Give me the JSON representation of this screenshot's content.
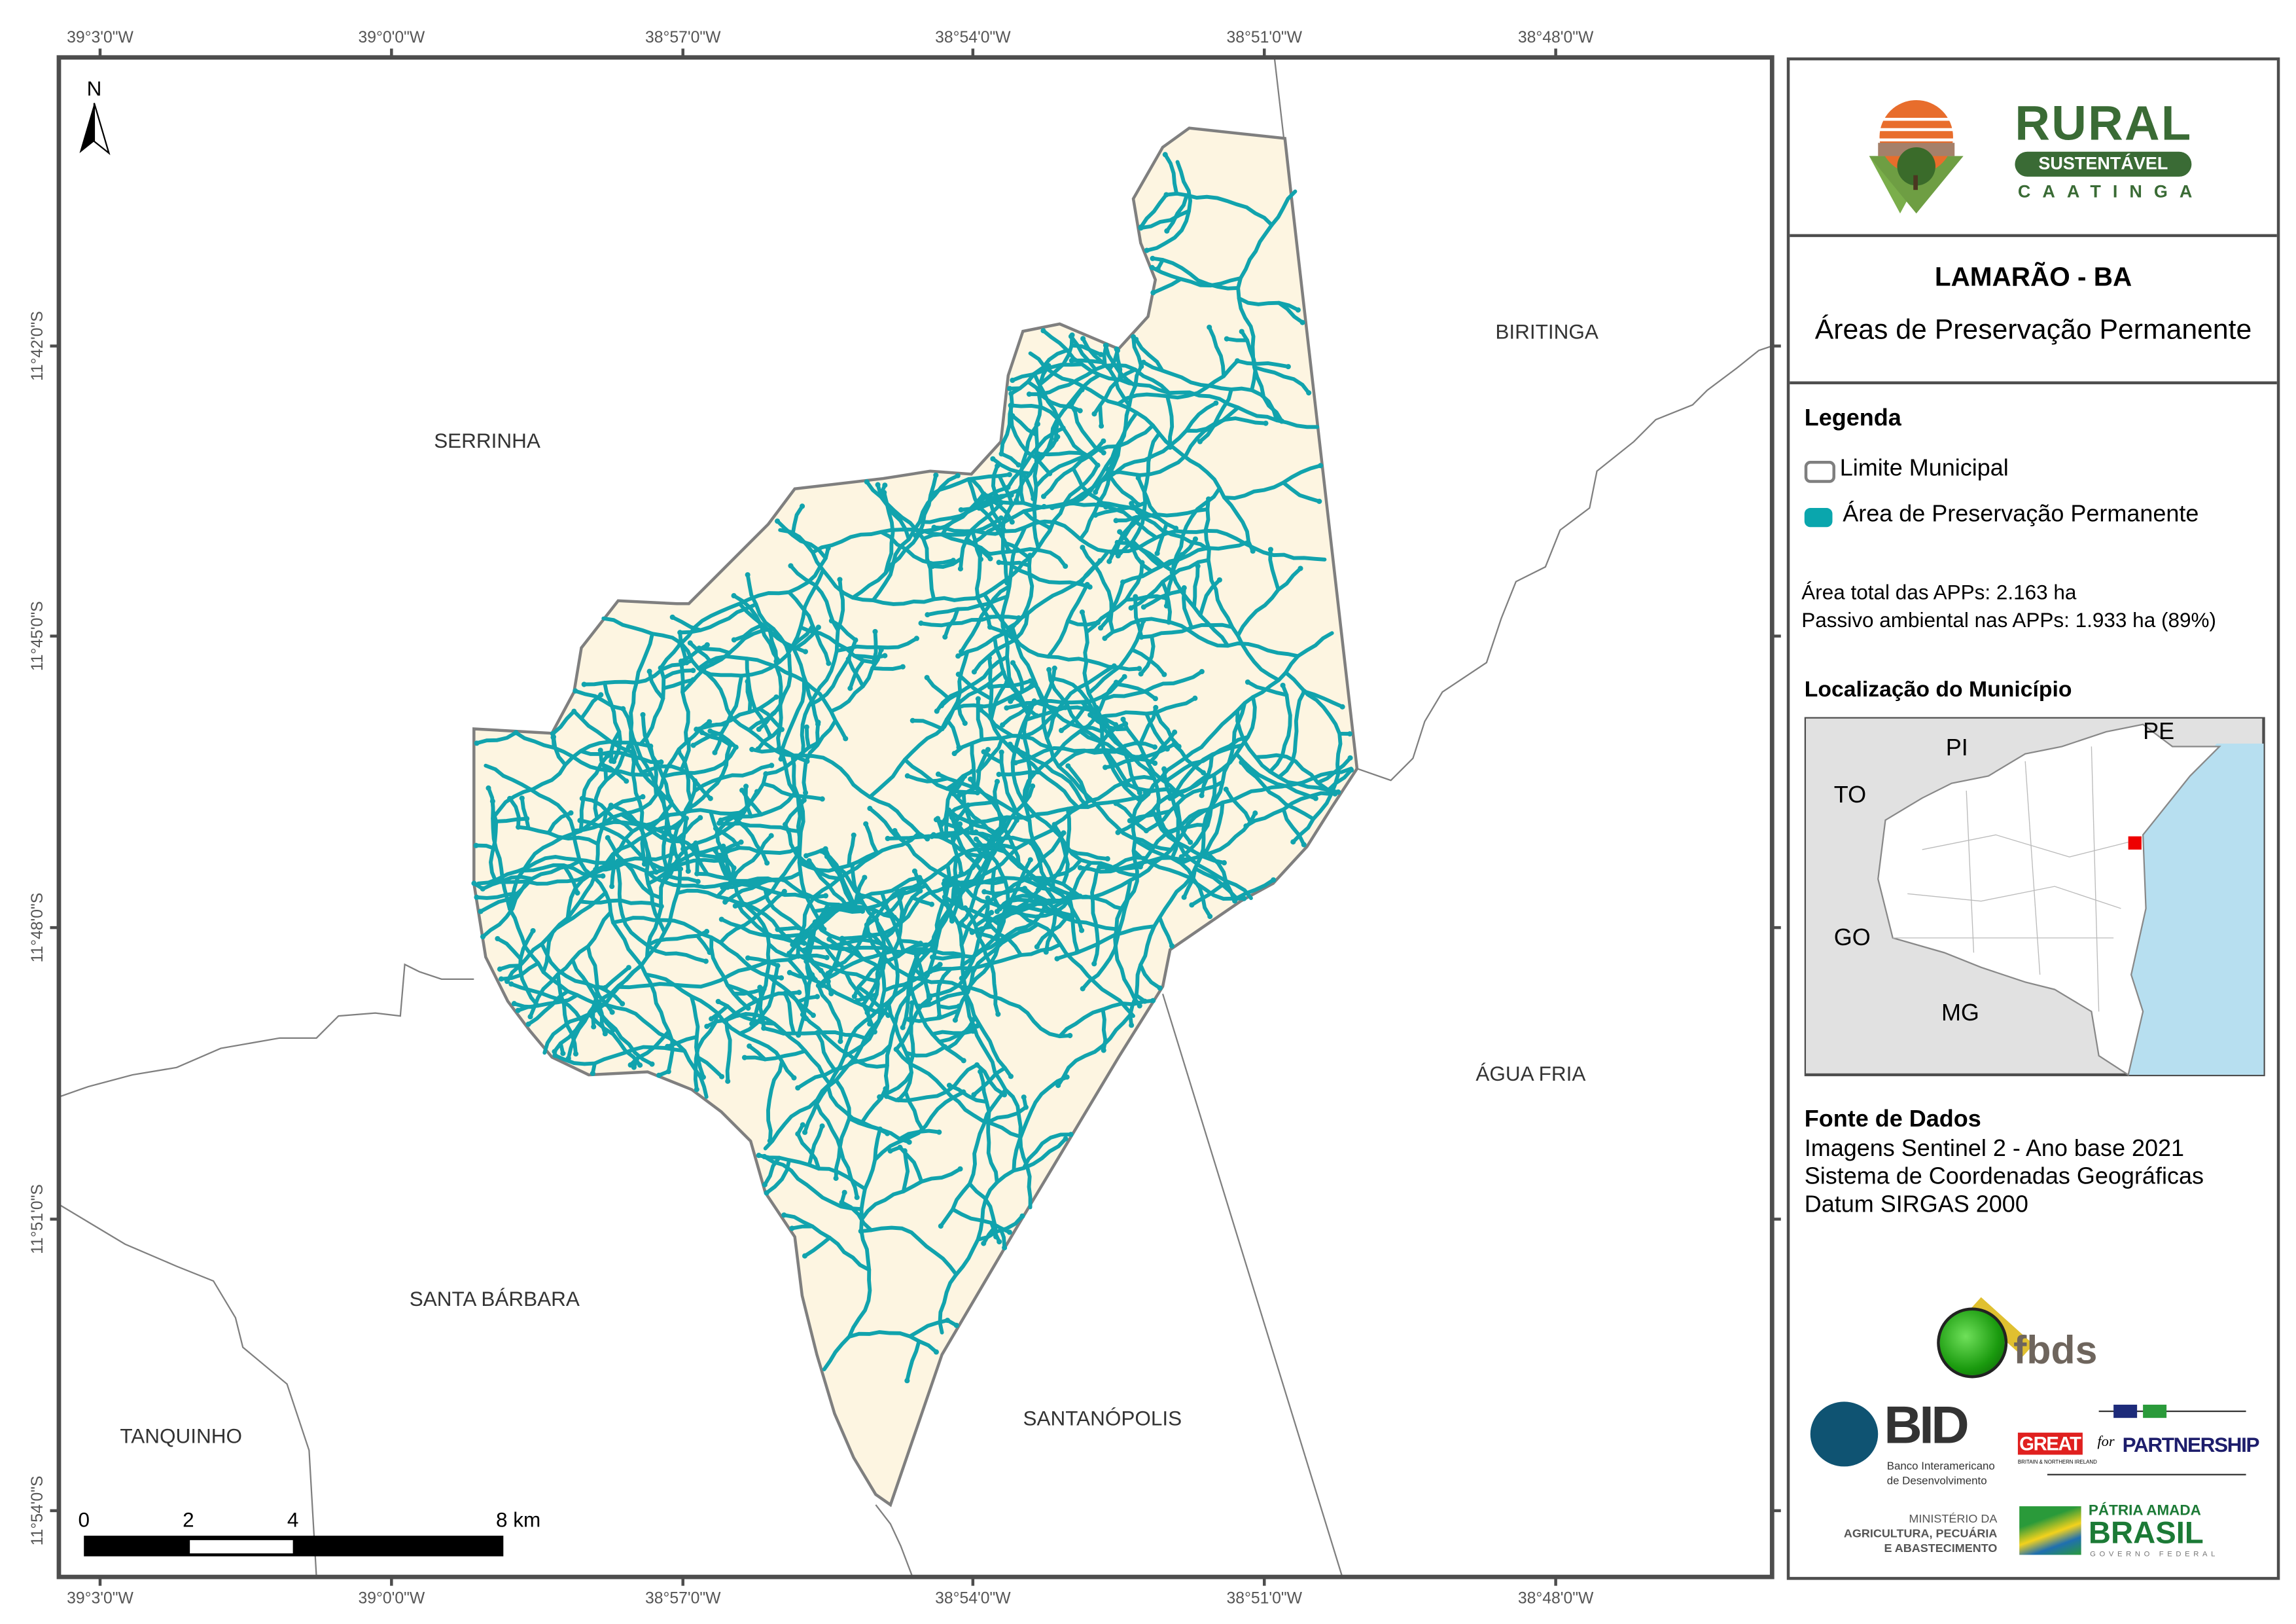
{
  "map": {
    "municipality": "LAMARÃO - BA",
    "subtitle": "Áreas de Preservação Permanente",
    "north_label": "N",
    "lon_ticks": [
      "39°3'0\"W",
      "39°0'0\"W",
      "38°57'0\"W",
      "38°54'0\"W",
      "38°51'0\"W",
      "38°48'0\"W"
    ],
    "lat_ticks": [
      "11°42'0\"S",
      "11°45'0\"S",
      "11°48'0\"S",
      "11°51'0\"S",
      "11°54'0\"S"
    ],
    "neighbors": [
      "SERRINHA",
      "BIRITINGA",
      "ÁGUA FRIA",
      "SANTA BÁRBARA",
      "TANQUINHO",
      "SANTANÓPOLIS"
    ],
    "scale_labels": [
      "0",
      "2",
      "4",
      "8 km"
    ],
    "colors": {
      "municipality_fill": "#fdf5e1",
      "app": "#11a3ad",
      "boundary": "#7f7f7f",
      "frame": "#4d4d4d",
      "sea": "#b7dff0",
      "land": "#e1e1e1"
    }
  },
  "logo": {
    "rural": "RURAL",
    "sustentavel": "SUSTENTÁVEL",
    "caatinga": "CAATINGA"
  },
  "legend": {
    "title": "Legenda",
    "items": [
      {
        "label": "Limite Municipal"
      },
      {
        "label": "Área de Preservação Permanente"
      }
    ],
    "stats": [
      "Área total das APPs:  2.163 ha",
      "Passivo ambiental nas APPs: 1.933 ha (89%)"
    ]
  },
  "location": {
    "title": "Localização do Município",
    "states": [
      "TO",
      "PI",
      "PE",
      "GO",
      "MG"
    ]
  },
  "sources": {
    "title": "Fonte de Dados",
    "lines": [
      "Imagens Sentinel 2 - Ano base 2021",
      "Sistema de Coordenadas Geográficas",
      "Datum SIRGAS 2000"
    ]
  },
  "partners": {
    "fbds": "fbds",
    "bid": "BID",
    "bid_sub1": "Banco Interamericano",
    "bid_sub2": "de Desenvolvimento",
    "great": "GREAT",
    "great_for": "for",
    "partnership": "PARTNERSHIP",
    "great_sub": "BRITAIN & NORTHERN IRELAND",
    "mapa1": "MINISTÉRIO DA",
    "mapa2": "AGRICULTURA, PECUÁRIA",
    "mapa3": "E ABASTECIMENTO",
    "patria": "PÁTRIA AMADA",
    "brasil": "BRASIL",
    "gov": "GOVERNO FEDERAL"
  }
}
